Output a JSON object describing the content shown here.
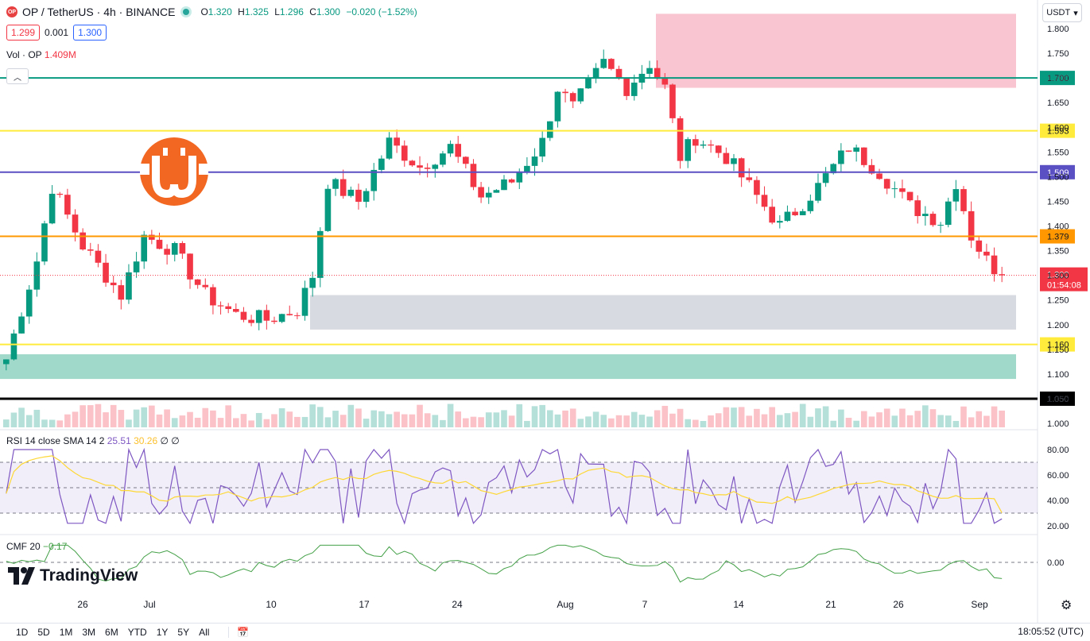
{
  "header": {
    "symbol": "OP / TetherUS · 4h · BINANCE",
    "logo_text": "OP",
    "o_label": "O",
    "o_value": "1.320",
    "h_label": "H",
    "h_value": "1.325",
    "l_label": "L",
    "l_value": "1.296",
    "c_label": "C",
    "c_value": "1.300",
    "change": "−0.020 (−1.52%)"
  },
  "quote": {
    "bid": "1.299",
    "spread": "0.001",
    "ask": "1.300"
  },
  "volume": {
    "label": "Vol · OP",
    "value": "1.409M"
  },
  "currency_selector": "USDT",
  "rsi": {
    "label": "RSI 14 close SMA 14 2",
    "rsi_value": "25.51",
    "sma_value": "30.26",
    "extra1": "∅",
    "extra2": "∅"
  },
  "cmf": {
    "label": "CMF 20",
    "value": "−0.17"
  },
  "branding": "TradingView",
  "range_buttons": [
    "1D",
    "5D",
    "1M",
    "3M",
    "6M",
    "YTD",
    "1Y",
    "5Y",
    "All"
  ],
  "clock": "18:05:52 (UTC)",
  "colors": {
    "up": "#089981",
    "down": "#f23645",
    "rsi_line": "#7e57c2",
    "rsi_sma": "#fdd835",
    "cmf_line": "#43a047"
  },
  "chart_data": {
    "type": "candlestick",
    "timeframe": "4h",
    "y_ticks": [
      "1.800",
      "1.750",
      "1.700",
      "1.650",
      "1.600",
      "1.550",
      "1.500",
      "1.450",
      "1.400",
      "1.350",
      "1.300",
      "1.250",
      "1.200",
      "1.150",
      "1.100",
      "1.050",
      "1.000"
    ],
    "ylim": [
      1.0,
      1.82
    ],
    "x_ticks": [
      "26",
      "Jul",
      "10",
      "17",
      "24",
      "Aug",
      "7",
      "14",
      "21",
      "26",
      "Sep"
    ],
    "last_price": "1.300",
    "countdown": "01:54:08",
    "key_prices": [
      {
        "series": "close",
        "x": 0,
        "y": 1.13
      },
      {
        "series": "close",
        "x": 4,
        "y": 1.33
      },
      {
        "series": "close",
        "x": 6,
        "y": 1.48
      },
      {
        "series": "close",
        "x": 10,
        "y": 1.36
      },
      {
        "series": "close",
        "x": 15,
        "y": 1.26
      },
      {
        "series": "close",
        "x": 18,
        "y": 1.38
      },
      {
        "series": "close",
        "x": 22,
        "y": 1.35
      },
      {
        "series": "close",
        "x": 26,
        "y": 1.26
      },
      {
        "series": "close",
        "x": 30,
        "y": 1.22
      },
      {
        "series": "close",
        "x": 34,
        "y": 1.21
      },
      {
        "series": "close",
        "x": 38,
        "y": 1.23
      },
      {
        "series": "close",
        "x": 40,
        "y": 1.3
      },
      {
        "series": "close",
        "x": 42,
        "y": 1.49
      },
      {
        "series": "close",
        "x": 46,
        "y": 1.45
      },
      {
        "series": "close",
        "x": 50,
        "y": 1.57
      },
      {
        "series": "close",
        "x": 54,
        "y": 1.52
      },
      {
        "series": "close",
        "x": 58,
        "y": 1.56
      },
      {
        "series": "close",
        "x": 62,
        "y": 1.46
      },
      {
        "series": "close",
        "x": 66,
        "y": 1.49
      },
      {
        "series": "close",
        "x": 70,
        "y": 1.57
      },
      {
        "series": "close",
        "x": 72,
        "y": 1.68
      },
      {
        "series": "close",
        "x": 74,
        "y": 1.64
      },
      {
        "series": "close",
        "x": 78,
        "y": 1.73
      },
      {
        "series": "close",
        "x": 81,
        "y": 1.68
      },
      {
        "series": "close",
        "x": 84,
        "y": 1.73
      },
      {
        "series": "close",
        "x": 86,
        "y": 1.68
      },
      {
        "series": "close",
        "x": 88,
        "y": 1.54
      },
      {
        "series": "close",
        "x": 90,
        "y": 1.58
      },
      {
        "series": "close",
        "x": 94,
        "y": 1.54
      },
      {
        "series": "close",
        "x": 98,
        "y": 1.46
      },
      {
        "series": "close",
        "x": 101,
        "y": 1.4
      },
      {
        "series": "close",
        "x": 103,
        "y": 1.43
      },
      {
        "series": "close",
        "x": 106,
        "y": 1.48
      },
      {
        "series": "close",
        "x": 110,
        "y": 1.56
      },
      {
        "series": "close",
        "x": 114,
        "y": 1.51
      },
      {
        "series": "close",
        "x": 118,
        "y": 1.44
      },
      {
        "series": "close",
        "x": 122,
        "y": 1.41
      },
      {
        "series": "close",
        "x": 124,
        "y": 1.49
      },
      {
        "series": "close",
        "x": 126,
        "y": 1.38
      },
      {
        "series": "close",
        "x": 128,
        "y": 1.33
      },
      {
        "series": "close",
        "x": 130,
        "y": 1.3
      }
    ],
    "levels": [
      {
        "price": 1.7,
        "label": "1.700",
        "color": "#089981"
      },
      {
        "price": 1.593,
        "label": "1.593",
        "color": "#ffeb3b"
      },
      {
        "price": 1.509,
        "label": "1.509",
        "color": "#5b4fc4"
      },
      {
        "price": 1.379,
        "label": "1.379",
        "color": "#ff9800"
      },
      {
        "price": 1.16,
        "label": "1.160",
        "color": "#ffeb3b"
      },
      {
        "price": 1.05,
        "label": "1.050",
        "color": "#000000"
      }
    ],
    "zones": [
      {
        "from": 1.68,
        "to": 1.83,
        "color": "#f8bbc8"
      },
      {
        "from": 1.19,
        "to": 1.26,
        "color": "#d1d4dc"
      },
      {
        "from": 1.09,
        "to": 1.14,
        "color": "#8fd1c0"
      }
    ],
    "rsi_ticks": [
      "80.00",
      "60.00",
      "40.00",
      "20.00"
    ],
    "rsi_bands": [
      70,
      50,
      30
    ],
    "cmf_tick": "0.00"
  }
}
